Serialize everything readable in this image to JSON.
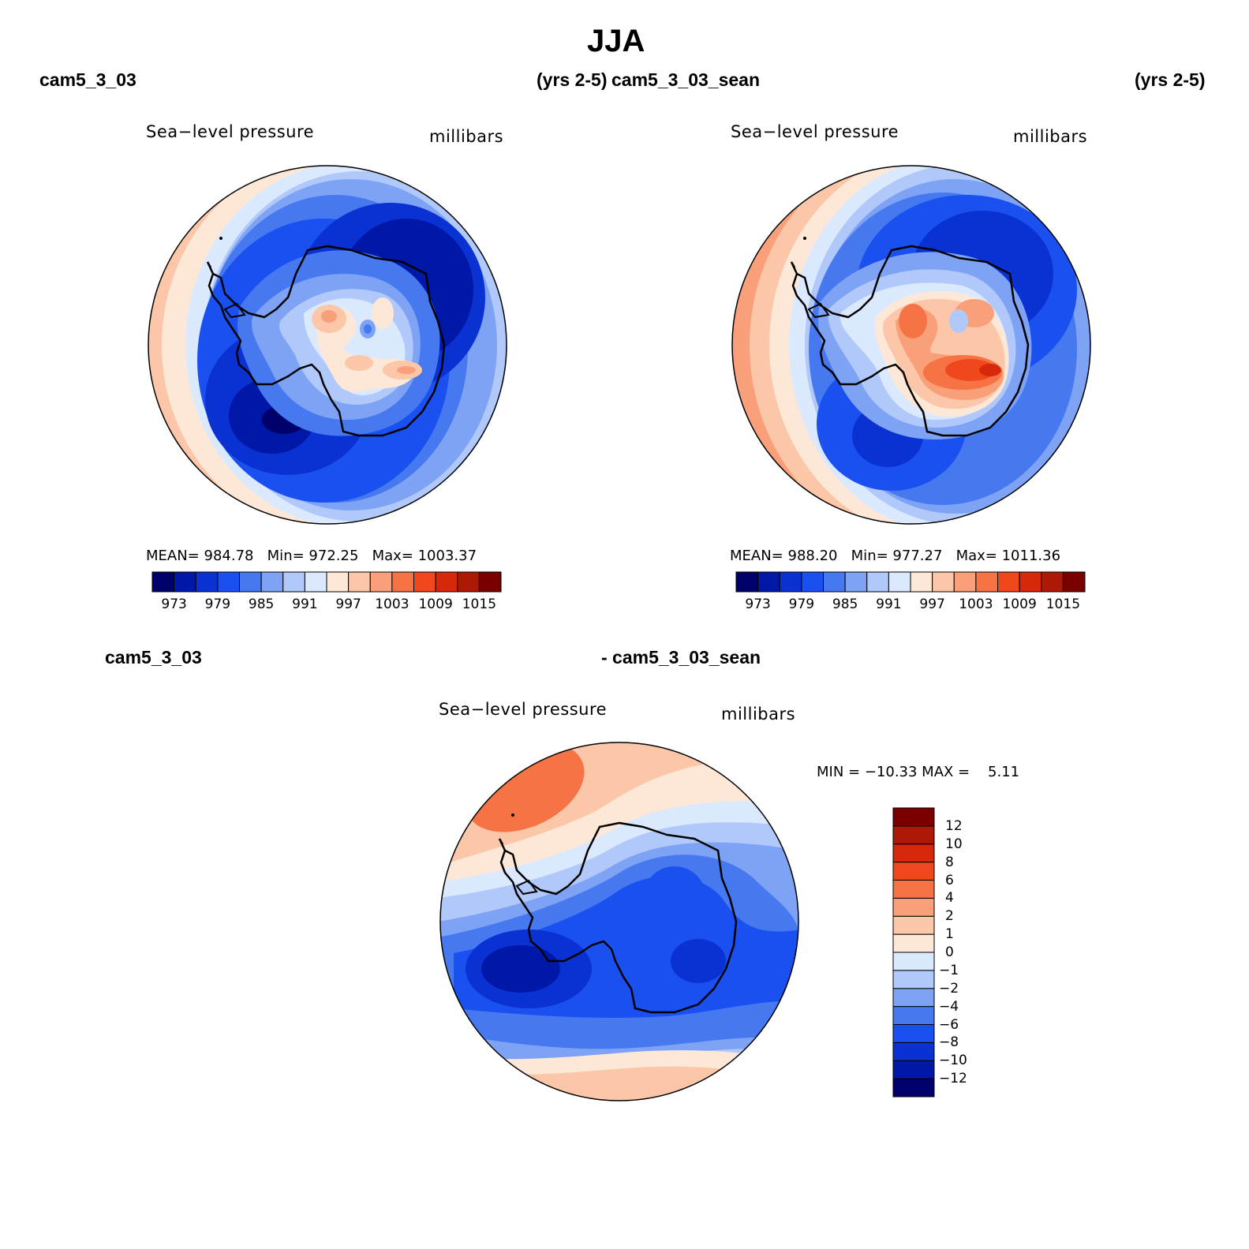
{
  "title": "JJA",
  "case1": {
    "name": "cam5_3_03",
    "years": "(yrs 2-5)"
  },
  "case2": {
    "name": "cam5_3_03_sean",
    "years": "(yrs 2-5)"
  },
  "diff": {
    "left": "cam5_3_03",
    "right": "- cam5_3_03_sean"
  },
  "variable": "Sea−level pressure",
  "units": "millibars",
  "panel1": {
    "mean_label": "MEAN=",
    "mean": "984.78",
    "min_label": "Min=",
    "min": "972.25",
    "max_label": "Max=",
    "max": "1003.37"
  },
  "panel2": {
    "mean_label": "MEAN=",
    "mean": "988.20",
    "min_label": "Min=",
    "min": "977.27",
    "max_label": "Max=",
    "max": "1011.36"
  },
  "panel3": {
    "minmax": "MIN = −10.33 MAX =",
    "max": "5.11"
  },
  "colorbar_abs": {
    "colors": [
      "#00006b",
      "#0018a8",
      "#0a32d2",
      "#1a50f0",
      "#4678f0",
      "#7ea3f4",
      "#b0c9fa",
      "#dbe9fe",
      "#fde8d8",
      "#fbc7a8",
      "#f9a07a",
      "#f67346",
      "#f0481c",
      "#d8280c",
      "#ac1a06",
      "#7a0000"
    ],
    "ticks": [
      "973",
      "979",
      "985",
      "991",
      "997",
      "1003",
      "1009",
      "1015"
    ]
  },
  "colorbar_diff": {
    "colors": [
      "#00006b",
      "#0018a8",
      "#0a32d2",
      "#1a50f0",
      "#4678f0",
      "#7ea3f4",
      "#b0c9fa",
      "#dbe9fe",
      "#fde8d8",
      "#fbc7a8",
      "#f9a07a",
      "#f67346",
      "#f0481c",
      "#d8280c",
      "#ac1a06",
      "#7a0000"
    ],
    "ticks": [
      "12",
      "10",
      "8",
      "6",
      "4",
      "2",
      "1",
      "0",
      "−1",
      "−2",
      "−4",
      "−6",
      "−8",
      "−10",
      "−12"
    ]
  }
}
